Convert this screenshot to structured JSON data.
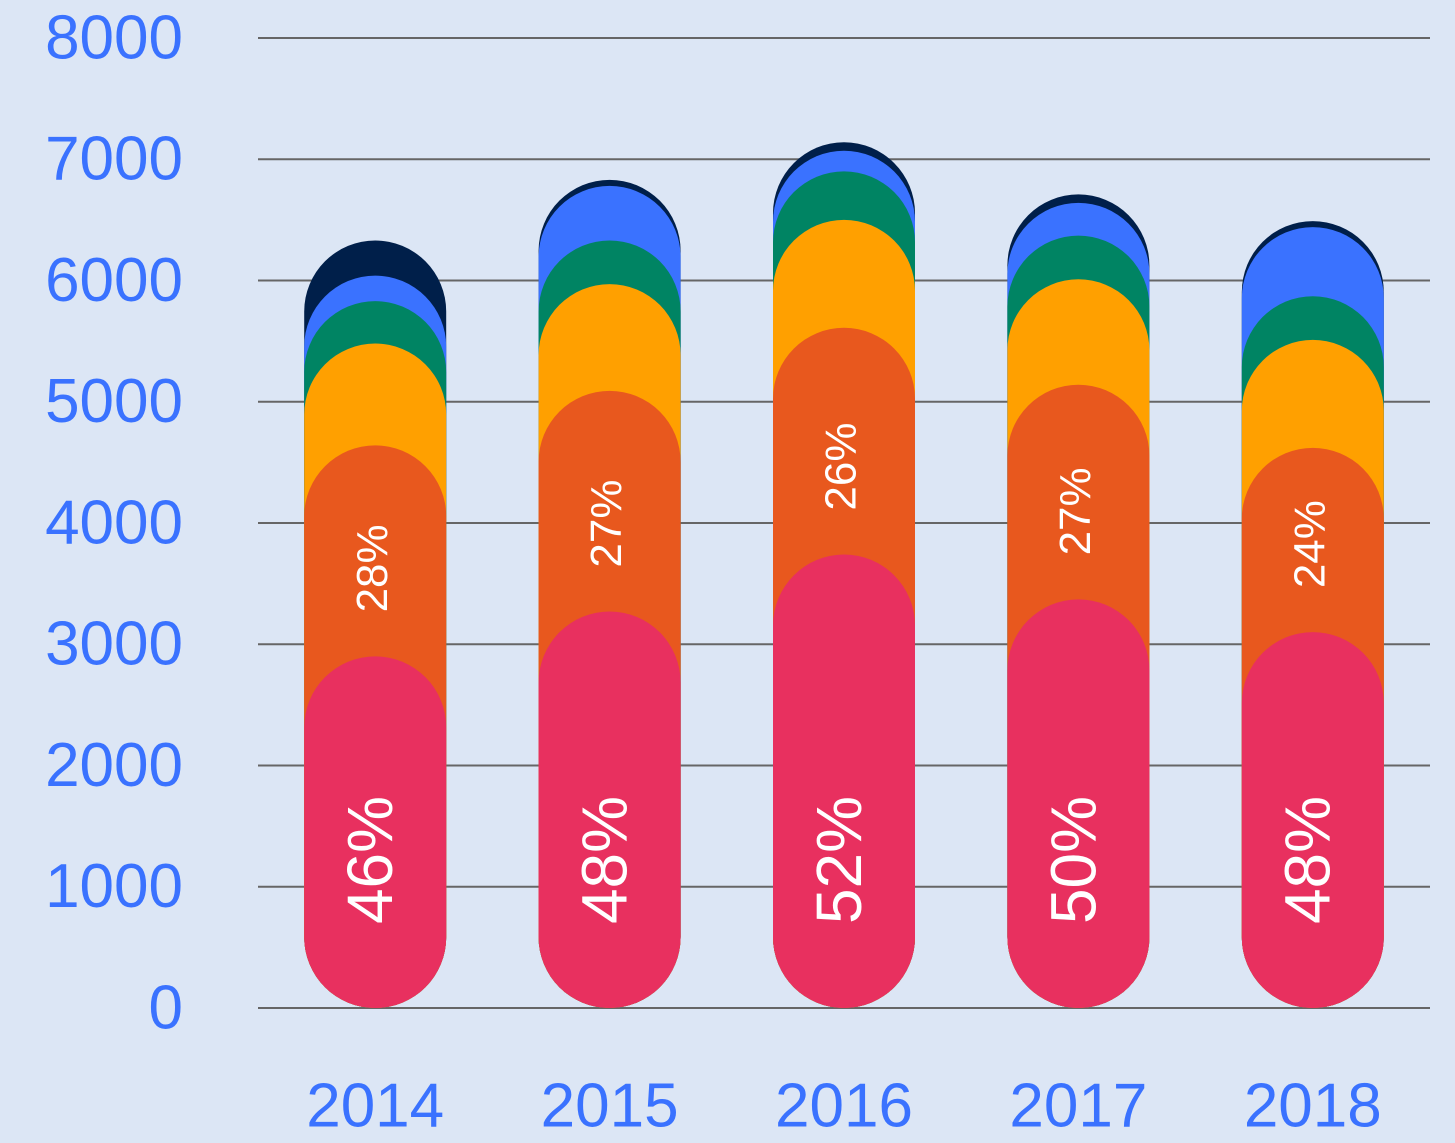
{
  "chart_data": {
    "type": "stacked-pill-bar",
    "categories": [
      "2014",
      "2015",
      "2016",
      "2017",
      "2018"
    ],
    "series": [
      {
        "color": "#e8305f",
        "values": [
          2900,
          3270,
          3740,
          3370,
          3100
        ],
        "labels": [
          "46%",
          "48%",
          "52%",
          "50%",
          "48%"
        ]
      },
      {
        "color": "#e8581e",
        "values": [
          1740,
          1820,
          1870,
          1770,
          1520
        ],
        "labels": [
          "28%",
          "27%",
          "26%",
          "27%",
          "24%"
        ]
      },
      {
        "color": "#ffa000",
        "values": [
          840,
          880,
          890,
          870,
          890
        ]
      },
      {
        "color": "#008463",
        "values": [
          350,
          360,
          400,
          360,
          360
        ]
      },
      {
        "color": "#3a72ff",
        "values": [
          210,
          450,
          170,
          270,
          570
        ]
      },
      {
        "color": "#001f4a",
        "values": [
          290,
          50,
          70,
          70,
          50
        ]
      }
    ],
    "ylim": [
      0,
      8000
    ],
    "yticks": [
      0,
      1000,
      2000,
      3000,
      4000,
      5000,
      6000,
      7000,
      8000
    ],
    "grid": true
  }
}
